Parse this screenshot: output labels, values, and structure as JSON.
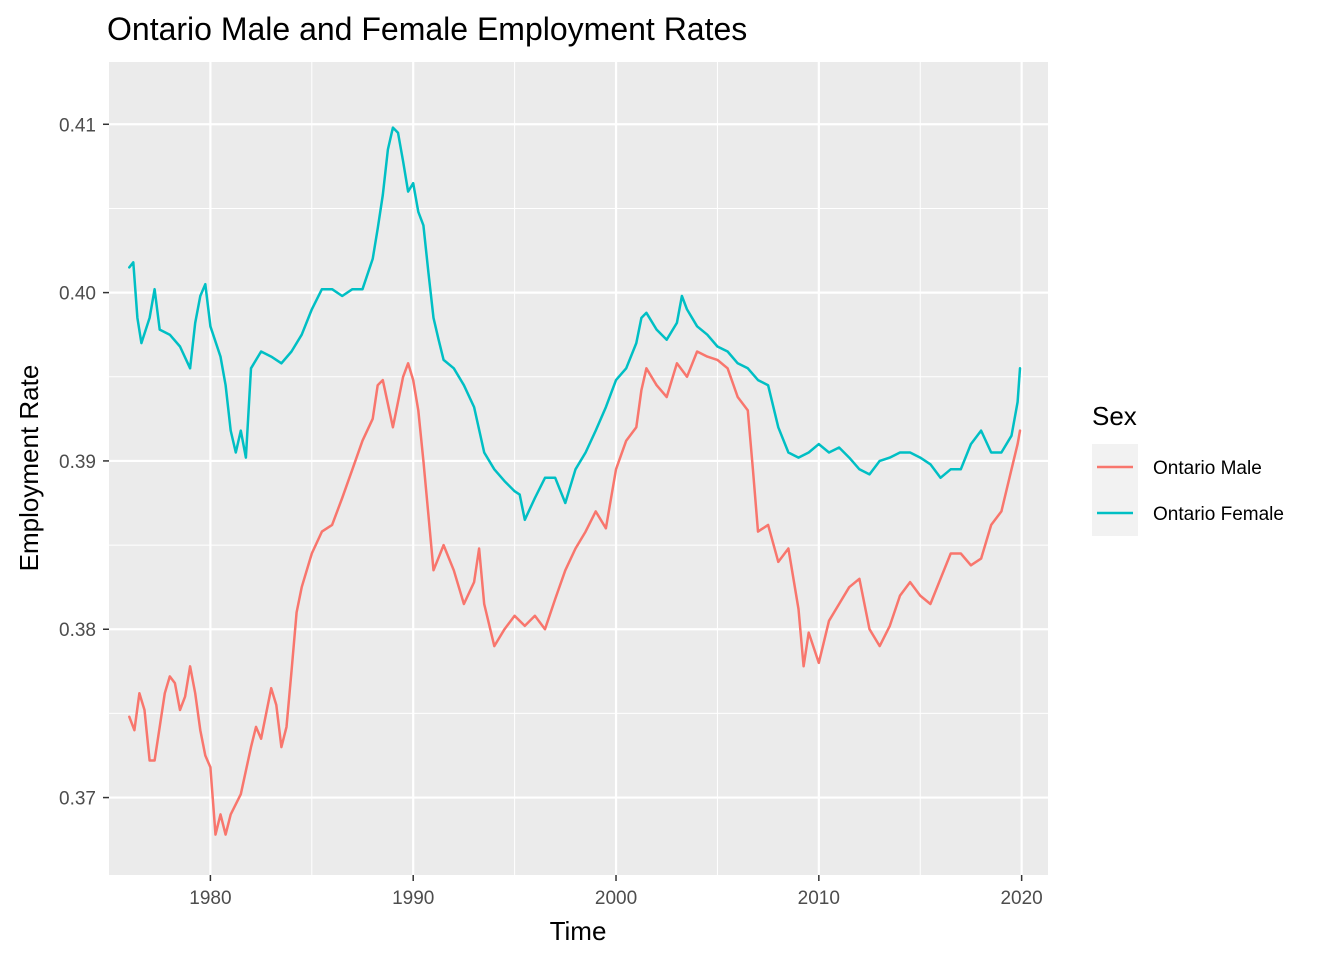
{
  "chart_data": {
    "type": "line",
    "title": "Ontario Male and Female Employment Rates",
    "xlabel": "Time",
    "ylabel": "Employment Rate",
    "xlim": [
      1975,
      2021.3
    ],
    "ylim": [
      0.3654,
      0.4137
    ],
    "x_ticks": [
      1980,
      1990,
      2000,
      2010,
      2020
    ],
    "x_tick_labels": [
      "1980",
      "1990",
      "2000",
      "2010",
      "2020"
    ],
    "y_ticks": [
      0.37,
      0.38,
      0.39,
      0.4,
      0.41
    ],
    "y_tick_labels": [
      "0.37",
      "0.38",
      "0.39",
      "0.40",
      "0.41"
    ],
    "grid": true,
    "legend": {
      "title": "Sex",
      "position": "right",
      "entries": [
        {
          "label": "Ontario Male",
          "color": "#F8766D"
        },
        {
          "label": "Ontario Female",
          "color": "#00BFC4"
        }
      ]
    },
    "series": [
      {
        "name": "Ontario Male",
        "color": "#F8766D",
        "points": [
          [
            1976.0,
            0.3748
          ],
          [
            1976.25,
            0.374
          ],
          [
            1976.5,
            0.3762
          ],
          [
            1976.75,
            0.3752
          ],
          [
            1977.0,
            0.3722
          ],
          [
            1977.25,
            0.3722
          ],
          [
            1977.5,
            0.3742
          ],
          [
            1977.75,
            0.3762
          ],
          [
            1978.0,
            0.3772
          ],
          [
            1978.25,
            0.3768
          ],
          [
            1978.5,
            0.3752
          ],
          [
            1978.75,
            0.376
          ],
          [
            1979.0,
            0.3778
          ],
          [
            1979.25,
            0.3762
          ],
          [
            1979.5,
            0.374
          ],
          [
            1979.75,
            0.3725
          ],
          [
            1980.0,
            0.3718
          ],
          [
            1980.25,
            0.3678
          ],
          [
            1980.5,
            0.369
          ],
          [
            1980.75,
            0.3678
          ],
          [
            1981.0,
            0.369
          ],
          [
            1981.5,
            0.3702
          ],
          [
            1982.0,
            0.373
          ],
          [
            1982.25,
            0.3742
          ],
          [
            1982.5,
            0.3735
          ],
          [
            1983.0,
            0.3765
          ],
          [
            1983.25,
            0.3755
          ],
          [
            1983.5,
            0.373
          ],
          [
            1983.75,
            0.3742
          ],
          [
            1984.0,
            0.3775
          ],
          [
            1984.25,
            0.381
          ],
          [
            1984.5,
            0.3825
          ],
          [
            1985.0,
            0.3845
          ],
          [
            1985.5,
            0.3858
          ],
          [
            1986.0,
            0.3862
          ],
          [
            1986.5,
            0.3878
          ],
          [
            1987.0,
            0.3895
          ],
          [
            1987.5,
            0.3912
          ],
          [
            1988.0,
            0.3925
          ],
          [
            1988.25,
            0.3945
          ],
          [
            1988.5,
            0.3948
          ],
          [
            1989.0,
            0.392
          ],
          [
            1989.25,
            0.3935
          ],
          [
            1989.5,
            0.395
          ],
          [
            1989.75,
            0.3958
          ],
          [
            1990.0,
            0.3948
          ],
          [
            1990.25,
            0.393
          ],
          [
            1990.5,
            0.39
          ],
          [
            1990.75,
            0.3868
          ],
          [
            1991.0,
            0.3835
          ],
          [
            1991.5,
            0.385
          ],
          [
            1992.0,
            0.3835
          ],
          [
            1992.5,
            0.3815
          ],
          [
            1993.0,
            0.3828
          ],
          [
            1993.25,
            0.3848
          ],
          [
            1993.5,
            0.3815
          ],
          [
            1994.0,
            0.379
          ],
          [
            1994.5,
            0.38
          ],
          [
            1995.0,
            0.3808
          ],
          [
            1995.5,
            0.3802
          ],
          [
            1996.0,
            0.3808
          ],
          [
            1996.5,
            0.38
          ],
          [
            1997.0,
            0.3818
          ],
          [
            1997.5,
            0.3835
          ],
          [
            1998.0,
            0.3848
          ],
          [
            1998.5,
            0.3858
          ],
          [
            1999.0,
            0.387
          ],
          [
            1999.5,
            0.386
          ],
          [
            2000.0,
            0.3895
          ],
          [
            2000.5,
            0.3912
          ],
          [
            2001.0,
            0.392
          ],
          [
            2001.25,
            0.3942
          ],
          [
            2001.5,
            0.3955
          ],
          [
            2002.0,
            0.3945
          ],
          [
            2002.5,
            0.3938
          ],
          [
            2003.0,
            0.3958
          ],
          [
            2003.5,
            0.395
          ],
          [
            2004.0,
            0.3965
          ],
          [
            2004.5,
            0.3962
          ],
          [
            2005.0,
            0.396
          ],
          [
            2005.5,
            0.3955
          ],
          [
            2006.0,
            0.3938
          ],
          [
            2006.5,
            0.393
          ],
          [
            2006.75,
            0.3895
          ],
          [
            2007.0,
            0.3858
          ],
          [
            2007.5,
            0.3862
          ],
          [
            2008.0,
            0.384
          ],
          [
            2008.5,
            0.3848
          ],
          [
            2009.0,
            0.3812
          ],
          [
            2009.25,
            0.3778
          ],
          [
            2009.5,
            0.3798
          ],
          [
            2010.0,
            0.378
          ],
          [
            2010.5,
            0.3805
          ],
          [
            2011.0,
            0.3815
          ],
          [
            2011.5,
            0.3825
          ],
          [
            2012.0,
            0.383
          ],
          [
            2012.5,
            0.38
          ],
          [
            2013.0,
            0.379
          ],
          [
            2013.5,
            0.3802
          ],
          [
            2014.0,
            0.382
          ],
          [
            2014.5,
            0.3828
          ],
          [
            2015.0,
            0.382
          ],
          [
            2015.5,
            0.3815
          ],
          [
            2016.0,
            0.383
          ],
          [
            2016.5,
            0.3845
          ],
          [
            2017.0,
            0.3845
          ],
          [
            2017.5,
            0.3838
          ],
          [
            2018.0,
            0.3842
          ],
          [
            2018.5,
            0.3862
          ],
          [
            2019.0,
            0.387
          ],
          [
            2019.5,
            0.3895
          ],
          [
            2019.8,
            0.391
          ],
          [
            2019.92,
            0.3918
          ]
        ]
      },
      {
        "name": "Ontario Female",
        "color": "#00BFC4",
        "points": [
          [
            1976.0,
            0.4015
          ],
          [
            1976.2,
            0.4018
          ],
          [
            1976.4,
            0.3985
          ],
          [
            1976.6,
            0.397
          ],
          [
            1977.0,
            0.3985
          ],
          [
            1977.25,
            0.4002
          ],
          [
            1977.5,
            0.3978
          ],
          [
            1978.0,
            0.3975
          ],
          [
            1978.5,
            0.3968
          ],
          [
            1979.0,
            0.3955
          ],
          [
            1979.25,
            0.3982
          ],
          [
            1979.5,
            0.3998
          ],
          [
            1979.75,
            0.4005
          ],
          [
            1980.0,
            0.398
          ],
          [
            1980.5,
            0.3962
          ],
          [
            1980.75,
            0.3945
          ],
          [
            1981.0,
            0.3918
          ],
          [
            1981.25,
            0.3905
          ],
          [
            1981.5,
            0.3918
          ],
          [
            1981.75,
            0.3902
          ],
          [
            1982.0,
            0.3955
          ],
          [
            1982.5,
            0.3965
          ],
          [
            1983.0,
            0.3962
          ],
          [
            1983.5,
            0.3958
          ],
          [
            1984.0,
            0.3965
          ],
          [
            1984.5,
            0.3975
          ],
          [
            1985.0,
            0.399
          ],
          [
            1985.5,
            0.4002
          ],
          [
            1986.0,
            0.4002
          ],
          [
            1986.5,
            0.3998
          ],
          [
            1987.0,
            0.4002
          ],
          [
            1987.5,
            0.4002
          ],
          [
            1988.0,
            0.402
          ],
          [
            1988.25,
            0.4038
          ],
          [
            1988.5,
            0.4058
          ],
          [
            1988.75,
            0.4085
          ],
          [
            1989.0,
            0.4098
          ],
          [
            1989.25,
            0.4095
          ],
          [
            1989.5,
            0.4078
          ],
          [
            1989.75,
            0.406
          ],
          [
            1990.0,
            0.4065
          ],
          [
            1990.25,
            0.4048
          ],
          [
            1990.5,
            0.404
          ],
          [
            1990.75,
            0.4012
          ],
          [
            1991.0,
            0.3985
          ],
          [
            1991.25,
            0.3972
          ],
          [
            1991.5,
            0.396
          ],
          [
            1992.0,
            0.3955
          ],
          [
            1992.5,
            0.3945
          ],
          [
            1993.0,
            0.3932
          ],
          [
            1993.5,
            0.3905
          ],
          [
            1994.0,
            0.3895
          ],
          [
            1994.5,
            0.3888
          ],
          [
            1995.0,
            0.3882
          ],
          [
            1995.25,
            0.388
          ],
          [
            1995.5,
            0.3865
          ],
          [
            1996.0,
            0.3878
          ],
          [
            1996.5,
            0.389
          ],
          [
            1997.0,
            0.389
          ],
          [
            1997.5,
            0.3875
          ],
          [
            1998.0,
            0.3895
          ],
          [
            1998.5,
            0.3905
          ],
          [
            1999.0,
            0.3918
          ],
          [
            1999.5,
            0.3932
          ],
          [
            2000.0,
            0.3948
          ],
          [
            2000.5,
            0.3955
          ],
          [
            2001.0,
            0.397
          ],
          [
            2001.25,
            0.3985
          ],
          [
            2001.5,
            0.3988
          ],
          [
            2002.0,
            0.3978
          ],
          [
            2002.5,
            0.3972
          ],
          [
            2003.0,
            0.3982
          ],
          [
            2003.25,
            0.3998
          ],
          [
            2003.5,
            0.399
          ],
          [
            2004.0,
            0.398
          ],
          [
            2004.5,
            0.3975
          ],
          [
            2005.0,
            0.3968
          ],
          [
            2005.5,
            0.3965
          ],
          [
            2006.0,
            0.3958
          ],
          [
            2006.5,
            0.3955
          ],
          [
            2007.0,
            0.3948
          ],
          [
            2007.5,
            0.3945
          ],
          [
            2008.0,
            0.392
          ],
          [
            2008.5,
            0.3905
          ],
          [
            2009.0,
            0.3902
          ],
          [
            2009.5,
            0.3905
          ],
          [
            2010.0,
            0.391
          ],
          [
            2010.5,
            0.3905
          ],
          [
            2011.0,
            0.3908
          ],
          [
            2011.5,
            0.3902
          ],
          [
            2012.0,
            0.3895
          ],
          [
            2012.5,
            0.3892
          ],
          [
            2013.0,
            0.39
          ],
          [
            2013.5,
            0.3902
          ],
          [
            2014.0,
            0.3905
          ],
          [
            2014.5,
            0.3905
          ],
          [
            2015.0,
            0.3902
          ],
          [
            2015.5,
            0.3898
          ],
          [
            2016.0,
            0.389
          ],
          [
            2016.5,
            0.3895
          ],
          [
            2017.0,
            0.3895
          ],
          [
            2017.5,
            0.391
          ],
          [
            2018.0,
            0.3918
          ],
          [
            2018.5,
            0.3905
          ],
          [
            2019.0,
            0.3905
          ],
          [
            2019.5,
            0.3915
          ],
          [
            2019.8,
            0.3935
          ],
          [
            2019.92,
            0.3955
          ]
        ]
      }
    ]
  }
}
